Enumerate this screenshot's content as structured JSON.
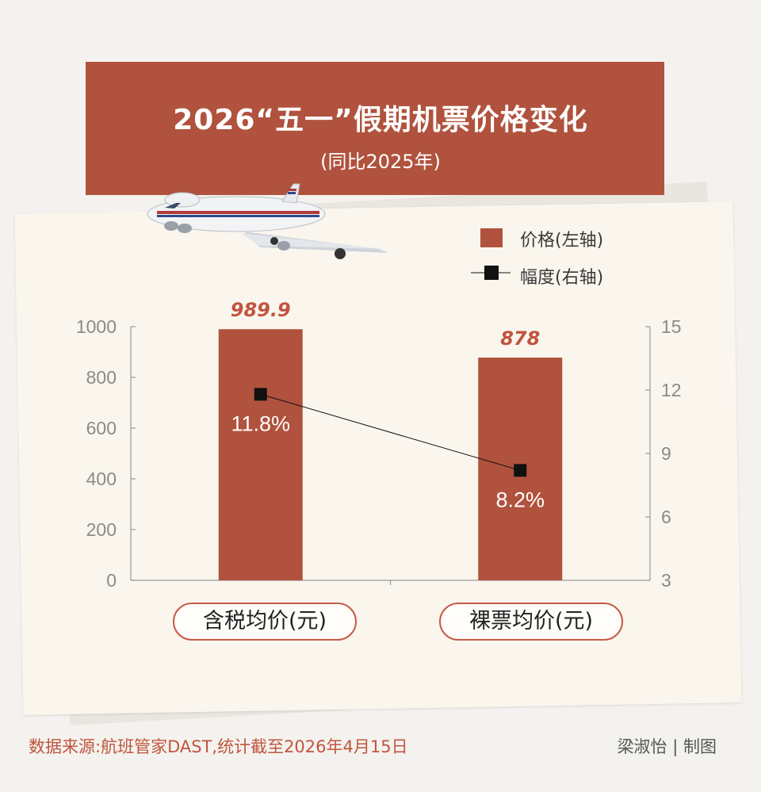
{
  "title": "2026“五一”假期机票价格变化",
  "subtitle": "(同比2025年)",
  "legend": {
    "bar_label": "价格(左轴)",
    "line_label": "幅度(右轴)"
  },
  "footer": {
    "source": "数据来源:航班管家DAST,统计截至2026年4月15日",
    "credit": "梁淑怡 | 制图"
  },
  "colors": {
    "bar": "#b0523d",
    "banner": "#b0523d",
    "line": "#111111",
    "accent_text": "#c0553f"
  },
  "icons": [
    "airplane-illustration"
  ],
  "chart_data": {
    "type": "bar",
    "categories": [
      "含税均价(元)",
      "裸票均价(元)"
    ],
    "series": [
      {
        "name": "价格(左轴)",
        "type": "bar",
        "axis": "left",
        "values": [
          989.9,
          878
        ],
        "labels": [
          "989.9",
          "878"
        ]
      },
      {
        "name": "幅度(右轴)",
        "type": "line",
        "axis": "right",
        "values": [
          11.8,
          8.2
        ],
        "labels": [
          "11.8%",
          "8.2%"
        ]
      }
    ],
    "y_left": {
      "ylim": [
        0,
        1000
      ],
      "ticks": [
        0,
        200,
        400,
        600,
        800,
        1000
      ]
    },
    "y_right": {
      "ylim": [
        3,
        15
      ],
      "ticks": [
        3,
        6,
        9,
        12,
        15
      ]
    },
    "grid": false,
    "legend_position": "top-right"
  }
}
